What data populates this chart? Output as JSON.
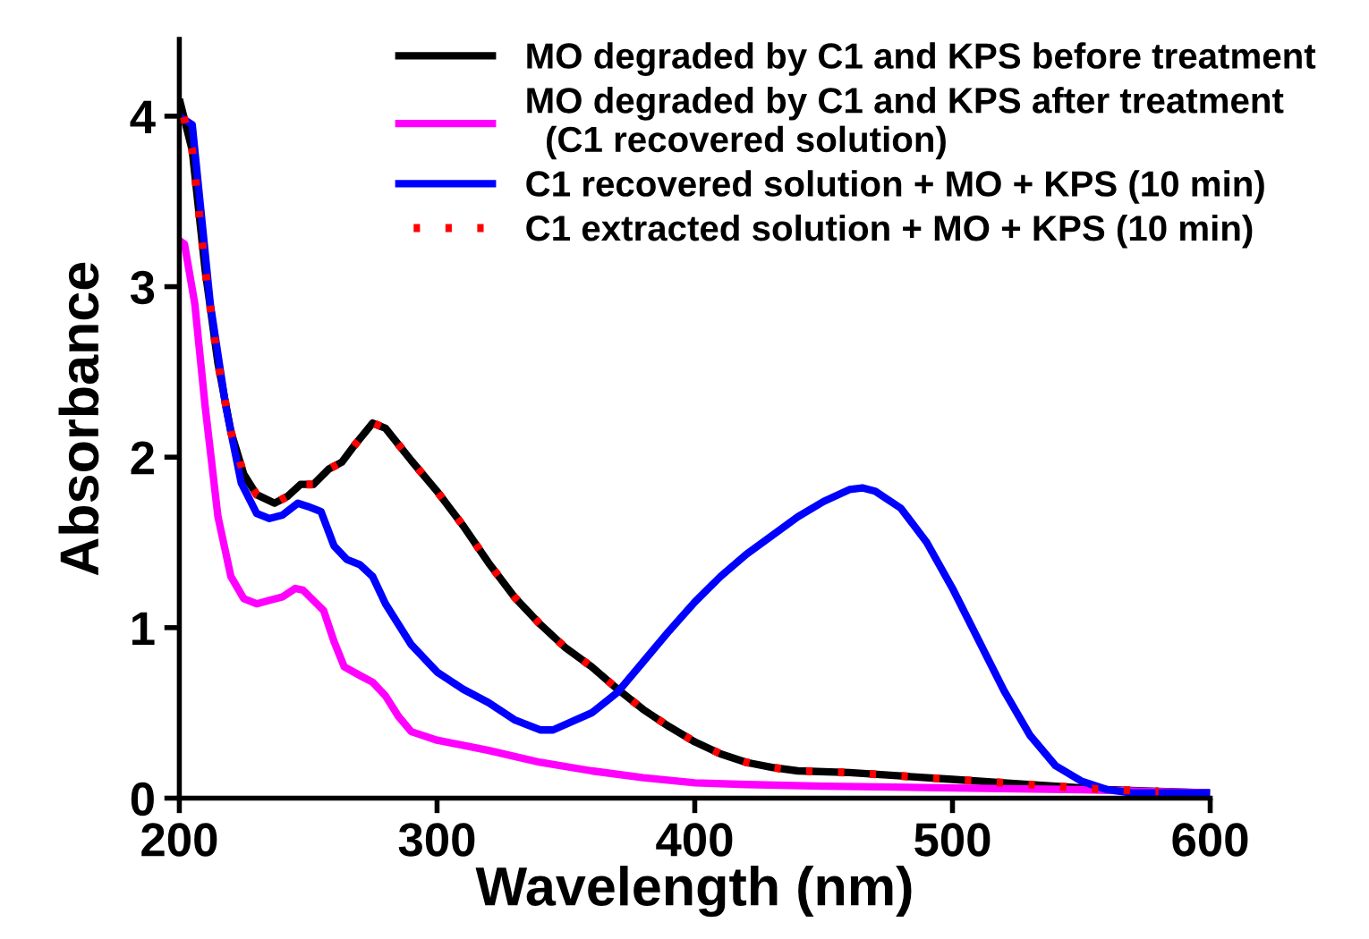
{
  "chart_data": {
    "type": "line",
    "xlabel": "Wavelength (nm)",
    "ylabel": "Absorbance",
    "xlim": [
      200,
      600
    ],
    "xticks": [
      200,
      300,
      400,
      500,
      600
    ],
    "ylim": [
      0,
      4.45
    ],
    "yticks": [
      0,
      1,
      2,
      3,
      4
    ],
    "grid": false,
    "legend": "top right",
    "line_style": "solid",
    "series": [
      {
        "name": "MO degraded by C1 and KPS before treatment",
        "color": "#000000",
        "x": [
          200,
          205,
          210,
          215,
          220,
          225,
          230,
          237,
          242,
          247,
          252,
          258,
          263,
          268,
          275,
          280,
          290,
          300,
          310,
          320,
          330,
          340,
          350,
          360,
          370,
          380,
          390,
          400,
          410,
          420,
          430,
          440,
          460,
          480,
          500,
          520,
          540,
          560,
          580,
          600
        ],
        "values": [
          4.1,
          3.8,
          3.1,
          2.55,
          2.15,
          1.9,
          1.78,
          1.73,
          1.77,
          1.84,
          1.84,
          1.93,
          1.97,
          2.07,
          2.2,
          2.17,
          1.98,
          1.8,
          1.6,
          1.38,
          1.18,
          1.02,
          0.88,
          0.77,
          0.64,
          0.52,
          0.42,
          0.33,
          0.26,
          0.21,
          0.18,
          0.16,
          0.15,
          0.13,
          0.11,
          0.09,
          0.07,
          0.05,
          0.04,
          0.03
        ]
      },
      {
        "name": "MO degraded by C1 and KPS after treatment\n  (C1 recovered solution)",
        "color": "#ff00ff",
        "x": [
          200,
          202,
          206,
          210,
          215,
          220,
          225,
          230,
          235,
          240,
          245,
          248,
          252,
          256,
          260,
          264,
          270,
          275,
          280,
          285,
          290,
          300,
          320,
          340,
          360,
          380,
          400,
          420,
          450,
          500,
          550,
          600
        ],
        "values": [
          3.27,
          3.25,
          2.9,
          2.3,
          1.65,
          1.3,
          1.17,
          1.14,
          1.16,
          1.18,
          1.23,
          1.22,
          1.16,
          1.1,
          0.92,
          0.77,
          0.72,
          0.68,
          0.6,
          0.48,
          0.39,
          0.34,
          0.28,
          0.21,
          0.16,
          0.12,
          0.09,
          0.08,
          0.07,
          0.06,
          0.05,
          0.03
        ]
      },
      {
        "name": "C1 recovered solution + MO + KPS (10 min)",
        "color": "#0000ff",
        "x": [
          200,
          203,
          205,
          208,
          212,
          218,
          224,
          230,
          235,
          240,
          246,
          250,
          255,
          260,
          265,
          270,
          275,
          280,
          290,
          300,
          310,
          320,
          330,
          340,
          345,
          360,
          370,
          380,
          390,
          400,
          410,
          420,
          430,
          440,
          450,
          460,
          465,
          470,
          480,
          490,
          500,
          510,
          520,
          530,
          540,
          550,
          560,
          570,
          600
        ],
        "values": [
          4.0,
          3.97,
          3.95,
          3.5,
          2.9,
          2.3,
          1.85,
          1.67,
          1.64,
          1.66,
          1.73,
          1.71,
          1.68,
          1.48,
          1.4,
          1.37,
          1.3,
          1.14,
          0.9,
          0.74,
          0.64,
          0.56,
          0.46,
          0.4,
          0.4,
          0.5,
          0.62,
          0.8,
          0.98,
          1.15,
          1.3,
          1.43,
          1.54,
          1.65,
          1.74,
          1.81,
          1.82,
          1.8,
          1.7,
          1.5,
          1.23,
          0.93,
          0.63,
          0.37,
          0.19,
          0.1,
          0.05,
          0.03,
          0.03
        ]
      },
      {
        "name": "C1 extracted solution + MO + KPS (10 min)",
        "color": "#ff0000",
        "line_style": "dotted",
        "x": [
          200,
          205,
          210,
          215,
          220,
          225,
          230,
          237,
          242,
          247,
          252,
          258,
          263,
          268,
          275,
          280,
          290,
          300,
          310,
          320,
          330,
          340,
          350,
          360,
          370,
          380,
          390,
          400,
          410,
          420,
          430,
          440,
          460,
          480,
          500,
          520,
          540,
          560,
          580
        ],
        "values": [
          4.1,
          3.8,
          3.1,
          2.55,
          2.15,
          1.9,
          1.78,
          1.73,
          1.77,
          1.84,
          1.84,
          1.93,
          1.97,
          2.07,
          2.2,
          2.17,
          1.98,
          1.8,
          1.6,
          1.38,
          1.18,
          1.02,
          0.88,
          0.77,
          0.64,
          0.52,
          0.42,
          0.33,
          0.26,
          0.21,
          0.18,
          0.16,
          0.15,
          0.13,
          0.11,
          0.09,
          0.07,
          0.05,
          0.04
        ]
      }
    ]
  }
}
